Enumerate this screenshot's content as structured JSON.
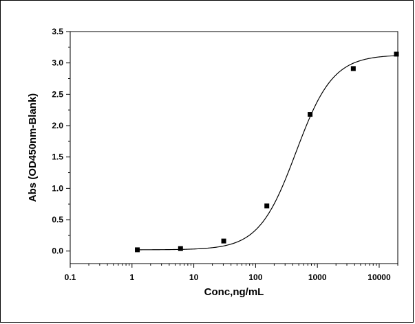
{
  "chart_data": {
    "type": "scatter",
    "title": "",
    "xlabel": "Conc,ng/mL",
    "ylabel": "Abs (OD450nm-Blank)",
    "x_scale": "log",
    "xlim": [
      0.1,
      20000
    ],
    "ylim": [
      -0.2,
      3.5
    ],
    "x_ticks": [
      0.1,
      1,
      10,
      100,
      1000,
      10000
    ],
    "x_tick_labels": [
      "0.1",
      "1",
      "10",
      "100",
      "1000",
      "10000"
    ],
    "y_ticks": [
      0.0,
      0.5,
      1.0,
      1.5,
      2.0,
      2.5,
      3.0,
      3.5
    ],
    "y_tick_labels": [
      "0.0",
      "0.5",
      "1.0",
      "1.5",
      "2.0",
      "2.5",
      "3.0",
      "3.5"
    ],
    "grid": false,
    "series": [
      {
        "x": [
          1.22,
          6.1,
          30.5,
          152,
          762,
          3810,
          19000
        ],
        "y": [
          0.02,
          0.04,
          0.16,
          0.72,
          2.18,
          2.91,
          3.14
        ],
        "marker": "square",
        "color": "#000000"
      }
    ],
    "fit_curve": {
      "model": "4PL",
      "bottom": 0.02,
      "top": 3.13,
      "ec50": 450,
      "hill": 1.45,
      "color": "#000000"
    }
  }
}
